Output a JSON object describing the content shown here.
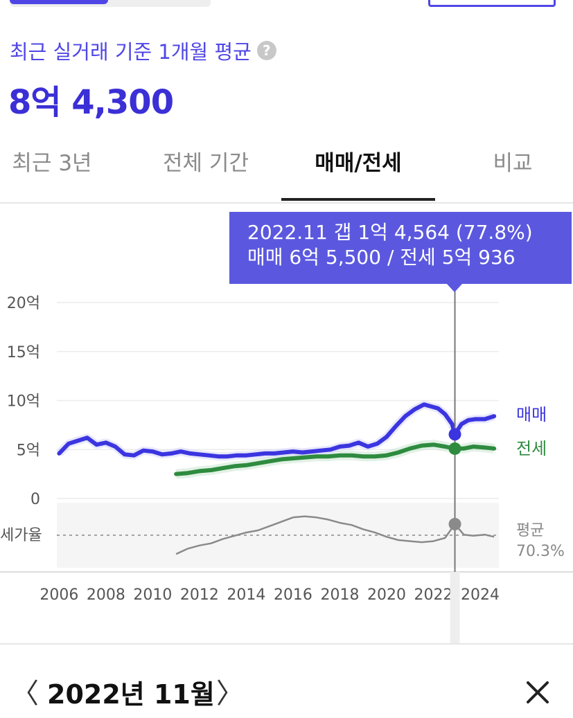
{
  "header": {
    "avg_label": "최근 실거래 기준 1개월 평균",
    "help_icon": "?",
    "avg_value": "8억 4,300"
  },
  "tabs": [
    {
      "label": "최근 3년",
      "active": false
    },
    {
      "label": "전체 기간",
      "active": false
    },
    {
      "label": "매매/전세",
      "active": true
    },
    {
      "label": "비교",
      "active": false
    }
  ],
  "tooltip": {
    "line1": "2022.11  갭 1억 4,564 (77.8%)",
    "line2": "매매 6억 5,500 / 전세 5억 936"
  },
  "month_nav": {
    "prev": "〈",
    "label": "2022년 11월",
    "next": "〉",
    "close_icon": "close-icon"
  },
  "colors": {
    "accent": "#4f46e5",
    "sale": "#3b35e0",
    "jeonse": "#2e8b3f",
    "ratio": "#8a8a8a",
    "tooltip_bg": "#5b58df"
  },
  "chart_data": {
    "type": "line",
    "x_ticks": [
      "2006",
      "2008",
      "2010",
      "2012",
      "2014",
      "2016",
      "2018",
      "2020",
      "2022",
      "2024"
    ],
    "y_ticks": [
      "20억",
      "15억",
      "10억",
      "5억",
      "0"
    ],
    "ylim": [
      0,
      20
    ],
    "xlim": [
      2005.9,
      2024.8
    ],
    "grid": true,
    "series": [
      {
        "name": "매매",
        "unit": "억",
        "points": [
          [
            2006.0,
            4.6
          ],
          [
            2006.4,
            5.6
          ],
          [
            2006.8,
            5.9
          ],
          [
            2007.2,
            6.2
          ],
          [
            2007.6,
            5.5
          ],
          [
            2008.0,
            5.7
          ],
          [
            2008.4,
            5.3
          ],
          [
            2008.8,
            4.5
          ],
          [
            2009.2,
            4.4
          ],
          [
            2009.6,
            4.9
          ],
          [
            2010.0,
            4.8
          ],
          [
            2010.4,
            4.5
          ],
          [
            2010.8,
            4.6
          ],
          [
            2011.2,
            4.8
          ],
          [
            2011.6,
            4.6
          ],
          [
            2012.0,
            4.5
          ],
          [
            2012.4,
            4.4
          ],
          [
            2012.8,
            4.3
          ],
          [
            2013.2,
            4.3
          ],
          [
            2013.6,
            4.4
          ],
          [
            2014.0,
            4.4
          ],
          [
            2014.4,
            4.5
          ],
          [
            2014.8,
            4.6
          ],
          [
            2015.2,
            4.6
          ],
          [
            2015.6,
            4.7
          ],
          [
            2016.0,
            4.8
          ],
          [
            2016.4,
            4.7
          ],
          [
            2016.8,
            4.8
          ],
          [
            2017.2,
            4.9
          ],
          [
            2017.6,
            5.0
          ],
          [
            2018.0,
            5.3
          ],
          [
            2018.4,
            5.4
          ],
          [
            2018.8,
            5.7
          ],
          [
            2019.2,
            5.3
          ],
          [
            2019.6,
            5.6
          ],
          [
            2020.0,
            6.3
          ],
          [
            2020.4,
            7.4
          ],
          [
            2020.8,
            8.4
          ],
          [
            2021.2,
            9.1
          ],
          [
            2021.6,
            9.6
          ],
          [
            2021.9,
            9.4
          ],
          [
            2022.2,
            9.2
          ],
          [
            2022.5,
            8.6
          ],
          [
            2022.8,
            7.6
          ],
          [
            2022.92,
            6.55
          ],
          [
            2023.2,
            7.6
          ],
          [
            2023.5,
            8.0
          ],
          [
            2023.8,
            8.1
          ],
          [
            2024.2,
            8.1
          ],
          [
            2024.6,
            8.4
          ]
        ]
      },
      {
        "name": "전세",
        "unit": "억",
        "points": [
          [
            2011.0,
            2.5
          ],
          [
            2011.5,
            2.6
          ],
          [
            2012.0,
            2.8
          ],
          [
            2012.5,
            2.9
          ],
          [
            2013.0,
            3.1
          ],
          [
            2013.5,
            3.3
          ],
          [
            2014.0,
            3.4
          ],
          [
            2014.5,
            3.6
          ],
          [
            2015.0,
            3.8
          ],
          [
            2015.5,
            4.0
          ],
          [
            2016.0,
            4.1
          ],
          [
            2016.5,
            4.2
          ],
          [
            2017.0,
            4.3
          ],
          [
            2017.5,
            4.3
          ],
          [
            2018.0,
            4.4
          ],
          [
            2018.5,
            4.4
          ],
          [
            2019.0,
            4.3
          ],
          [
            2019.5,
            4.3
          ],
          [
            2020.0,
            4.4
          ],
          [
            2020.5,
            4.7
          ],
          [
            2021.0,
            5.1
          ],
          [
            2021.5,
            5.4
          ],
          [
            2022.0,
            5.5
          ],
          [
            2022.5,
            5.3
          ],
          [
            2022.92,
            5.09
          ],
          [
            2023.3,
            5.1
          ],
          [
            2023.7,
            5.3
          ],
          [
            2024.2,
            5.2
          ],
          [
            2024.6,
            5.1
          ]
        ]
      },
      {
        "name": "전세가율",
        "average_label": "평균",
        "average_value": "70.3%",
        "points": [
          [
            2011.0,
            50
          ],
          [
            2011.5,
            55
          ],
          [
            2012.0,
            58
          ],
          [
            2012.5,
            60
          ],
          [
            2013.0,
            64
          ],
          [
            2013.5,
            67
          ],
          [
            2014.0,
            70
          ],
          [
            2014.5,
            72
          ],
          [
            2015.0,
            76
          ],
          [
            2015.5,
            80
          ],
          [
            2016.0,
            84
          ],
          [
            2016.5,
            85
          ],
          [
            2017.0,
            84
          ],
          [
            2017.5,
            82
          ],
          [
            2018.0,
            79
          ],
          [
            2018.5,
            77
          ],
          [
            2019.0,
            73
          ],
          [
            2019.5,
            70
          ],
          [
            2020.0,
            66
          ],
          [
            2020.5,
            63
          ],
          [
            2021.0,
            62
          ],
          [
            2021.5,
            61
          ],
          [
            2022.0,
            62
          ],
          [
            2022.5,
            65
          ],
          [
            2022.92,
            77.8
          ],
          [
            2023.3,
            68
          ],
          [
            2023.7,
            67
          ],
          [
            2024.2,
            68
          ],
          [
            2024.6,
            66
          ]
        ]
      }
    ],
    "ratio_axis_label": "세가율",
    "series_labels": [
      "매매",
      "전세"
    ],
    "selected": {
      "x": 2022.92,
      "label": "2022.11"
    }
  }
}
